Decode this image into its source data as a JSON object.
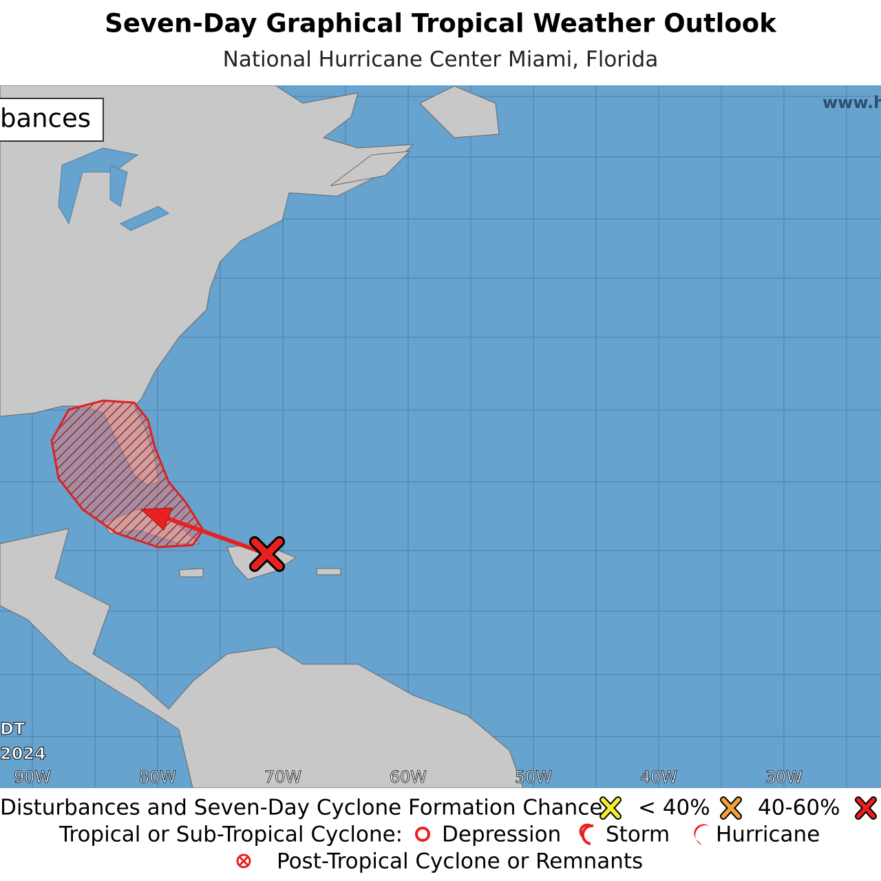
{
  "header": {
    "title": "Seven-Day Graphical Tropical Weather Outlook",
    "subtitle": "National Hurricane Center  Miami, Florida"
  },
  "map": {
    "panel_label": "bances",
    "website": "www.h",
    "time_zone": "DT",
    "year": "2024",
    "longitude_labels": [
      "90W",
      "80W",
      "70W",
      "60W",
      "50W",
      "40W",
      "30W"
    ]
  },
  "legend": {
    "formation_heading": "Disturbances and Seven-Day Cyclone Formation Chance:",
    "low": "< 40%",
    "medium": "40-60%",
    "cyclone_heading": "Tropical or Sub-Tropical Cyclone:",
    "depression": "Depression",
    "storm": "Storm",
    "hurricane": "Hurricane",
    "post_tropical": "Post-Tropical Cyclone or Remnants"
  }
}
